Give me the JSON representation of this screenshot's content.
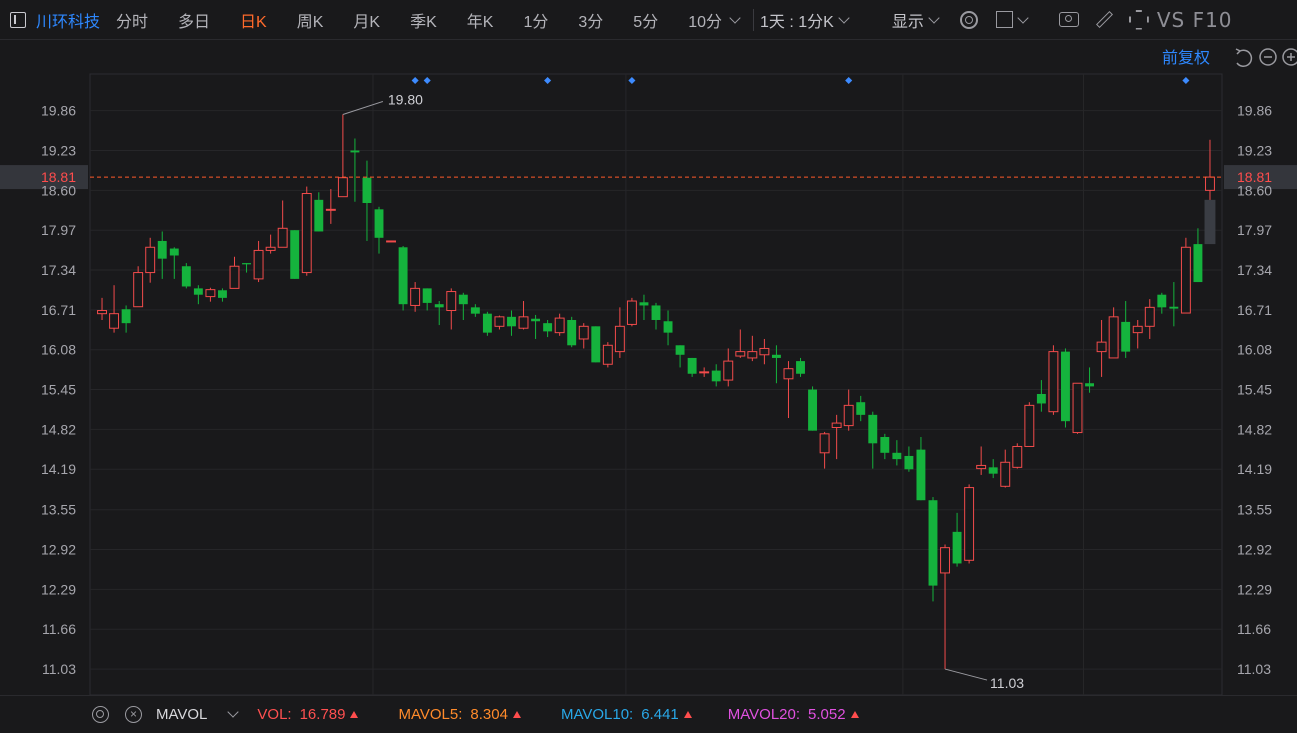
{
  "toolbar": {
    "stock_name": "川环科技",
    "tabs": [
      "分时",
      "多日",
      "日K",
      "周K",
      "月K",
      "季K",
      "年K",
      "1分",
      "3分",
      "5分",
      "10分"
    ],
    "active_tab": "日K",
    "period_label": "1天 : 1分K",
    "display_label": "显示",
    "vsf10_label": "VS F10"
  },
  "chart_header": {
    "adjust_label": "前复权"
  },
  "chart_data": {
    "type": "candlestick",
    "y_ticks": [
      "19.86",
      "19.23",
      "18.60",
      "17.97",
      "17.34",
      "16.71",
      "16.08",
      "15.45",
      "14.82",
      "14.19",
      "13.55",
      "12.92",
      "12.29",
      "11.66",
      "11.03"
    ],
    "ylim": [
      10.62,
      20.44
    ],
    "current_price": "18.81",
    "max_label": "19.80",
    "min_label": "11.03",
    "candles": [
      [
        16.65,
        16.7,
        16.9,
        16.55
      ],
      [
        16.42,
        16.65,
        17.1,
        16.35
      ],
      [
        16.72,
        16.5,
        16.78,
        16.35
      ],
      [
        16.76,
        17.3,
        17.4,
        16.76
      ],
      [
        17.3,
        17.7,
        17.85,
        17.14
      ],
      [
        17.8,
        17.52,
        17.95,
        17.2
      ],
      [
        17.68,
        17.57,
        17.7,
        17.2
      ],
      [
        17.4,
        17.08,
        17.45,
        17.05
      ],
      [
        17.05,
        16.95,
        17.1,
        16.8
      ],
      [
        16.92,
        17.03,
        17.06,
        16.84
      ],
      [
        17.02,
        16.9,
        17.05,
        16.84
      ],
      [
        17.05,
        17.4,
        17.55,
        17.05
      ],
      [
        17.45,
        17.43,
        17.45,
        17.3
      ],
      [
        17.2,
        17.65,
        17.8,
        17.15
      ],
      [
        17.65,
        17.7,
        17.9,
        17.6
      ],
      [
        17.7,
        18.0,
        18.44,
        17.7
      ],
      [
        17.97,
        17.2,
        17.97,
        17.2
      ],
      [
        17.3,
        18.55,
        18.66,
        17.25
      ],
      [
        18.45,
        17.95,
        18.57,
        17.95
      ],
      [
        18.3,
        18.3,
        18.62,
        18.07
      ],
      [
        18.5,
        18.8,
        19.8,
        18.5
      ],
      [
        19.23,
        19.2,
        19.42,
        18.42
      ],
      [
        18.8,
        18.4,
        19.07,
        17.8
      ],
      [
        18.3,
        17.85,
        18.34,
        17.6
      ],
      [
        17.8,
        17.8,
        17.8,
        17.78
      ],
      [
        17.7,
        16.8,
        17.72,
        16.7
      ],
      [
        16.78,
        17.05,
        17.15,
        16.68
      ],
      [
        17.05,
        16.82,
        17.05,
        16.7
      ],
      [
        16.8,
        16.75,
        16.85,
        16.47
      ],
      [
        16.7,
        17.0,
        17.05,
        16.4
      ],
      [
        16.95,
        16.8,
        16.98,
        16.55
      ],
      [
        16.75,
        16.65,
        16.8,
        16.6
      ],
      [
        16.65,
        16.35,
        16.68,
        16.3
      ],
      [
        16.45,
        16.6,
        16.62,
        16.4
      ],
      [
        16.6,
        16.45,
        16.7,
        16.3
      ],
      [
        16.42,
        16.6,
        16.85,
        16.4
      ],
      [
        16.57,
        16.53,
        16.63,
        16.25
      ],
      [
        16.5,
        16.37,
        16.55,
        16.28
      ],
      [
        16.35,
        16.58,
        16.65,
        16.3
      ],
      [
        16.55,
        16.15,
        16.6,
        16.12
      ],
      [
        16.25,
        16.45,
        16.5,
        16.1
      ],
      [
        16.45,
        15.88,
        16.45,
        15.88
      ],
      [
        15.85,
        16.15,
        16.2,
        15.8
      ],
      [
        16.05,
        16.45,
        16.75,
        15.95
      ],
      [
        16.48,
        16.85,
        16.9,
        16.45
      ],
      [
        16.83,
        16.78,
        16.95,
        16.55
      ],
      [
        16.78,
        16.55,
        16.82,
        16.4
      ],
      [
        16.53,
        16.35,
        16.7,
        16.15
      ],
      [
        16.15,
        16.0,
        16.15,
        15.8
      ],
      [
        15.95,
        15.7,
        15.95,
        15.65
      ],
      [
        15.72,
        15.73,
        15.8,
        15.65
      ],
      [
        15.75,
        15.58,
        15.85,
        15.5
      ],
      [
        15.6,
        15.9,
        16.1,
        15.5
      ],
      [
        15.98,
        16.05,
        16.4,
        15.95
      ],
      [
        15.95,
        16.05,
        16.3,
        15.9
      ],
      [
        16.0,
        16.1,
        16.25,
        15.85
      ],
      [
        16.0,
        15.95,
        16.15,
        15.55
      ],
      [
        15.62,
        15.78,
        15.9,
        15.0
      ],
      [
        15.9,
        15.7,
        15.95,
        15.65
      ],
      [
        15.45,
        14.8,
        15.5,
        14.8
      ],
      [
        14.45,
        14.75,
        14.78,
        14.2
      ],
      [
        14.85,
        14.92,
        15.05,
        14.35
      ],
      [
        14.88,
        15.2,
        15.45,
        14.8
      ],
      [
        15.25,
        15.05,
        15.35,
        14.95
      ],
      [
        15.05,
        14.6,
        15.1,
        14.2
      ],
      [
        14.7,
        14.45,
        14.75,
        14.35
      ],
      [
        14.45,
        14.35,
        14.65,
        14.25
      ],
      [
        14.4,
        14.19,
        14.55,
        14.15
      ],
      [
        14.5,
        13.7,
        14.7,
        13.7
      ],
      [
        13.7,
        12.35,
        13.75,
        12.1
      ],
      [
        12.55,
        12.95,
        13.0,
        11.03
      ],
      [
        13.2,
        12.7,
        13.5,
        12.65
      ],
      [
        12.75,
        13.9,
        13.95,
        12.7
      ],
      [
        14.2,
        14.25,
        14.55,
        14.1
      ],
      [
        14.22,
        14.12,
        14.35,
        14.05
      ],
      [
        13.92,
        14.3,
        14.5,
        13.9
      ],
      [
        14.22,
        14.55,
        14.6,
        14.2
      ],
      [
        14.55,
        15.2,
        15.25,
        14.55
      ],
      [
        15.38,
        15.23,
        15.6,
        15.1
      ],
      [
        15.1,
        16.05,
        16.15,
        15.05
      ],
      [
        16.05,
        14.95,
        16.1,
        14.85
      ],
      [
        14.77,
        15.55,
        15.55,
        14.75
      ],
      [
        15.55,
        15.5,
        15.8,
        15.4
      ],
      [
        16.05,
        16.2,
        16.55,
        15.65
      ],
      [
        15.95,
        16.6,
        16.75,
        15.95
      ],
      [
        16.52,
        16.05,
        16.85,
        15.95
      ],
      [
        16.35,
        16.45,
        16.55,
        16.1
      ],
      [
        16.45,
        16.75,
        16.88,
        16.25
      ],
      [
        16.95,
        16.75,
        16.98,
        16.65
      ],
      [
        16.76,
        16.73,
        17.15,
        16.45
      ],
      [
        16.66,
        17.7,
        17.85,
        16.66
      ],
      [
        17.75,
        17.15,
        18.0,
        17.15
      ],
      [
        18.6,
        18.81,
        19.4,
        18.4
      ]
    ]
  },
  "markers": [
    26,
    27,
    37,
    44,
    62,
    90
  ],
  "volume_bar": {
    "indicator": "MAVOL",
    "vol_label": "VOL:",
    "vol_value": "16.789",
    "mavol5_label": "MAVOL5:",
    "mavol5_value": "8.304",
    "mavol10_label": "MAVOL10:",
    "mavol10_value": "6.441",
    "mavol20_label": "MAVOL20:",
    "mavol20_value": "5.052"
  },
  "colors": {
    "up": "#f24b4b",
    "down": "#15b33d",
    "accent": "#2e88ff",
    "active_tab": "#ff6a2b",
    "price_line": "#ff5a2b"
  }
}
